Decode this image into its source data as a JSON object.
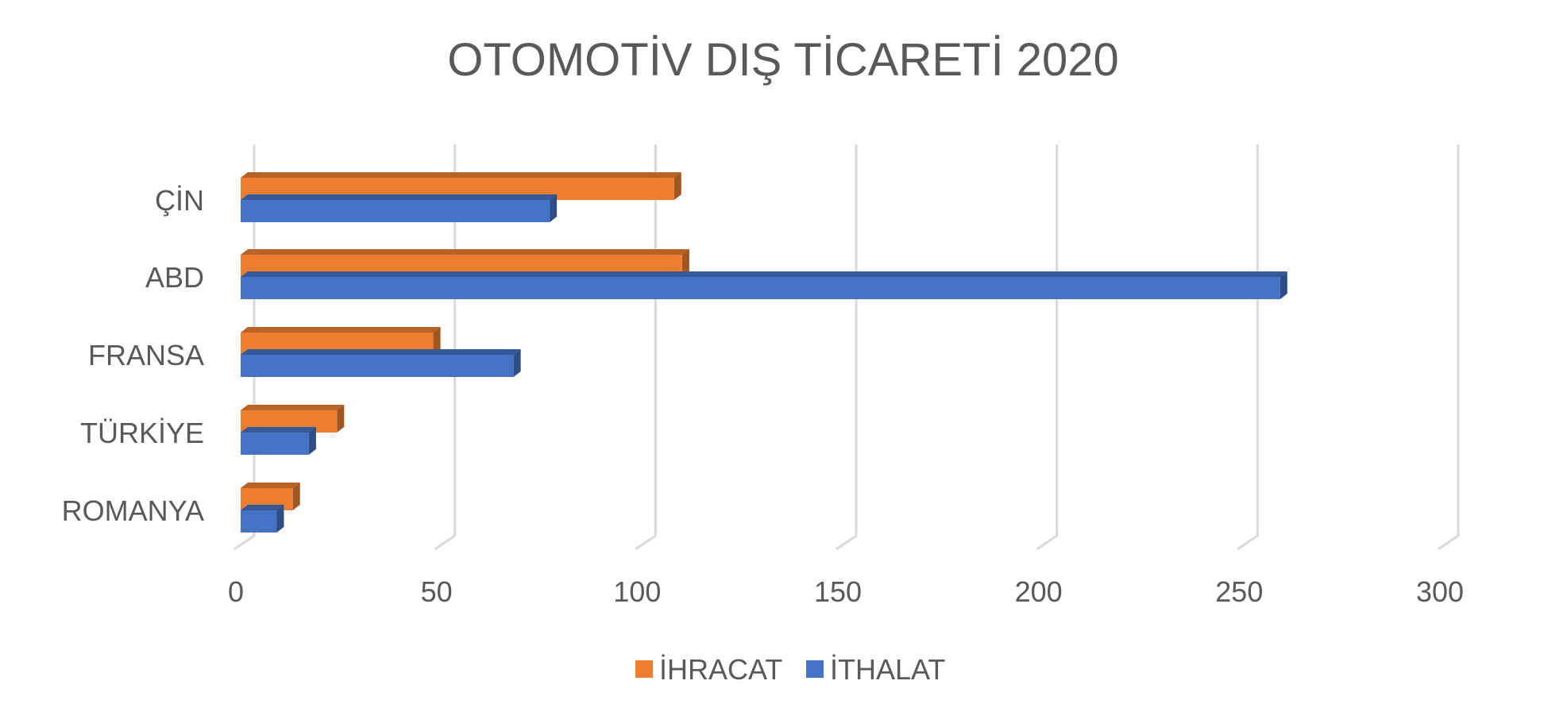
{
  "chart_data": {
    "type": "bar",
    "orientation": "horizontal",
    "style": "3d",
    "title": "OTOMOTİV DIŞ TİCARETİ 2020",
    "xlabel": "",
    "ylabel": "",
    "categories": [
      "ÇİN",
      "ABD",
      "FRANSA",
      "TÜRKİYE",
      "ROMANYA"
    ],
    "series": [
      {
        "name": "İHRACAT",
        "color": "#ED7D31",
        "values": [
          108,
          110,
          48,
          24,
          13
        ]
      },
      {
        "name": "İTHALAT",
        "color": "#4472C4",
        "values": [
          77,
          259,
          68,
          17,
          9
        ]
      }
    ],
    "xlim": [
      0,
      300
    ],
    "x_ticks": [
      0,
      50,
      100,
      150,
      200,
      250,
      300
    ],
    "grid": "vertical",
    "legend_position": "bottom"
  }
}
